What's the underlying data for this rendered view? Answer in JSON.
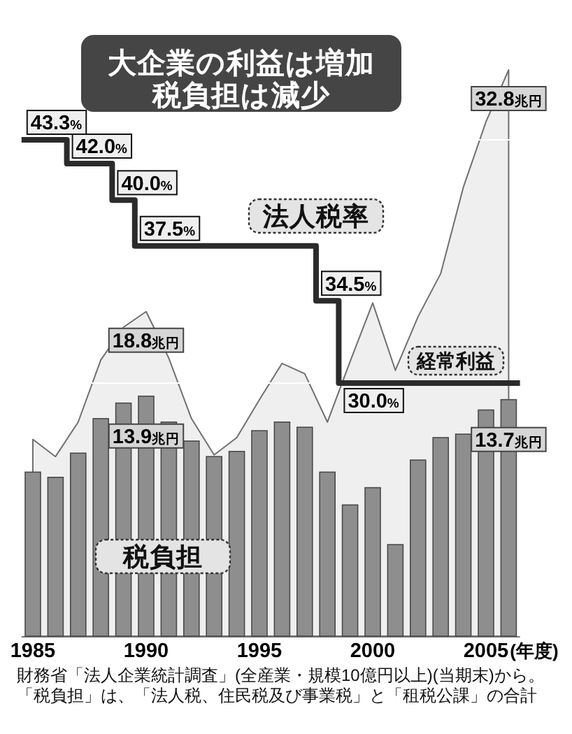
{
  "chart_data": [
    {
      "type": "bar",
      "title": "大企業の利益は増加",
      "subtitle": "税負担は減少",
      "x": [
        1985,
        1986,
        1987,
        1988,
        1989,
        1990,
        1991,
        1992,
        1993,
        1994,
        1995,
        1996,
        1997,
        1998,
        1999,
        2000,
        2001,
        2002,
        2003,
        2004,
        2005,
        2006
      ],
      "xlim": [
        1984.5,
        2006.5
      ],
      "xticks": [
        1985,
        1990,
        1995,
        2000,
        2005
      ],
      "xlabel": "(年度)",
      "tick_labels": "x",
      "series": [
        {
          "name": "経常利益",
          "type": "area",
          "color": "#efefef",
          "values": [
            11.4,
            10.4,
            12.4,
            16.0,
            17.9,
            18.8,
            16.1,
            12.6,
            10.5,
            11.5,
            13.7,
            15.8,
            15.2,
            12.4,
            15.9,
            19.3,
            15.4,
            18.5,
            21.0,
            26.0,
            29.8,
            32.8
          ],
          "value_labels": [
            null,
            null,
            null,
            null,
            null,
            "18.8兆円",
            null,
            null,
            null,
            null,
            null,
            null,
            null,
            null,
            null,
            null,
            null,
            null,
            null,
            null,
            null,
            "32.8兆円"
          ]
        },
        {
          "name": "税負担",
          "color": "#8e8e8e",
          "values": [
            9.5,
            9.2,
            10.6,
            12.6,
            13.5,
            13.9,
            12.4,
            11.3,
            10.4,
            10.7,
            11.9,
            12.4,
            12.1,
            9.5,
            7.6,
            8.6,
            5.3,
            10.2,
            11.5,
            11.7,
            13.1,
            13.7
          ],
          "value_labels": [
            null,
            null,
            null,
            null,
            null,
            "13.9兆円",
            null,
            null,
            null,
            null,
            null,
            null,
            null,
            null,
            null,
            null,
            null,
            null,
            null,
            null,
            null,
            "13.7兆円"
          ]
        }
      ],
      "annotations": [
        "財務省「法人企業統計調査」(全産業・規模10億円以上)(当期末)から。",
        "「税負担」は、「法人税、住民税及び事業税」と「租税公課」の合計"
      ]
    },
    {
      "type": "step",
      "xlim": [
        1984.5,
        2006.5
      ],
      "tick_labels": false,
      "series": [
        {
          "name": "法人税率",
          "color": "#2b2b2b",
          "x": [
            1984.5,
            1986.5,
            1988.5,
            1989.5,
            1997.5,
            1998.5,
            2006.5
          ],
          "values": [
            43.3,
            42.0,
            40.0,
            37.5,
            34.5,
            30.0,
            30.0
          ],
          "value_labels": [
            "43.3%",
            "42.0%",
            "40.0%",
            "37.5%",
            "34.5%",
            "30.0%",
            null
          ]
        }
      ]
    }
  ]
}
